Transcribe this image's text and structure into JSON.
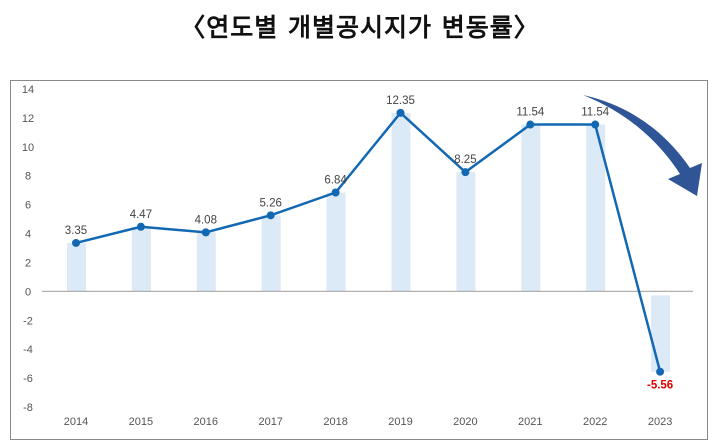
{
  "chart_data": {
    "type": "line",
    "title": "〈연도별 개별공시지가 변동률〉",
    "categories": [
      "2014",
      "2015",
      "2016",
      "2017",
      "2018",
      "2019",
      "2020",
      "2021",
      "2022",
      "2023"
    ],
    "series": [
      {
        "values": [
          3.35,
          4.47,
          4.08,
          5.26,
          6.84,
          12.35,
          8.25,
          11.54,
          11.54,
          -5.56
        ]
      }
    ],
    "data_labels": [
      "3.35",
      "4.47",
      "4.08",
      "5.26",
      "6.84",
      "12.35",
      "8.25",
      "11.54",
      "11.54",
      "-5.56"
    ],
    "bars_shadow": true,
    "ylim": [
      -8,
      14
    ],
    "yticks": [
      14,
      12,
      10,
      8,
      6,
      4,
      2,
      0,
      -2,
      -4,
      -6,
      -8
    ],
    "grid": false,
    "annotation": "downward-arrow",
    "colors": {
      "line": "#1268b3",
      "bar": "#dce9f6",
      "negative_label": "#e00000",
      "arrow": "#2f5597"
    }
  }
}
